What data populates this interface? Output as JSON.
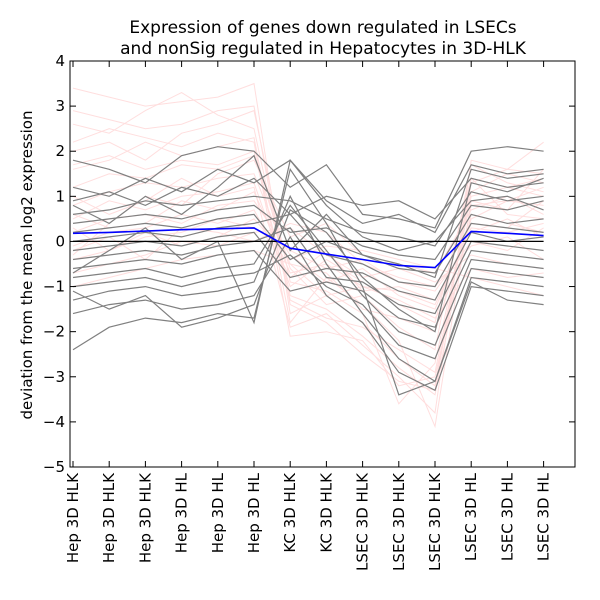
{
  "chart_data": {
    "type": "line",
    "title": "Expression of genes down regulated in LSECs\nand nonSig regulated in Hepatocytes in 3D-HLK",
    "xlabel": "",
    "ylabel": "deviation from the mean log2 expression",
    "ylim": [
      -5,
      4
    ],
    "yticks": [
      4,
      3,
      2,
      1,
      0,
      -1,
      -2,
      -3,
      -4,
      -5
    ],
    "grid": false,
    "categories": [
      "Hep 3D HLK",
      "Hep 3D HLK",
      "Hep 3D HLK",
      "Hep 3D HL",
      "Hep 3D HL",
      "Hep 3D HL",
      "KC 3D HLK",
      "KC 3D HLK",
      "LSEC 3D HLK",
      "LSEC 3D HLK",
      "LSEC 3D HLK",
      "LSEC 3D HL",
      "LSEC 3D HL",
      "LSEC 3D HL"
    ],
    "series": [
      {
        "role": "mean",
        "color": "#0000ff",
        "values": [
          0.18,
          0.2,
          0.23,
          0.26,
          0.28,
          0.3,
          -0.15,
          -0.28,
          -0.4,
          -0.53,
          -0.58,
          0.22,
          0.18,
          0.13
        ]
      },
      {
        "role": "zero-line",
        "color": "#000000",
        "values": [
          0,
          0,
          0,
          0,
          0,
          0,
          0,
          0,
          0,
          0,
          0,
          0,
          0,
          0
        ]
      }
    ],
    "background_series_colors": {
      "other_genes": "#ffdede",
      "down_regulated_genes": "#808080"
    },
    "gene_profiles_pink": [
      [
        3.4,
        3.2,
        3.0,
        3.1,
        3.2,
        3.5,
        -1.6,
        -1.2,
        -1.8,
        -2.6,
        -3.2,
        1.4,
        1.2,
        1.0
      ],
      [
        2.6,
        2.4,
        2.9,
        3.3,
        2.8,
        2.5,
        -1.2,
        -1.5,
        -2.1,
        -2.8,
        -3.4,
        0.8,
        0.9,
        1.2
      ],
      [
        2.0,
        2.2,
        1.8,
        2.4,
        2.6,
        2.9,
        -0.9,
        -1.1,
        -1.6,
        -3.6,
        -2.7,
        1.1,
        1.5,
        1.3
      ],
      [
        1.6,
        1.8,
        2.2,
        1.9,
        2.1,
        2.3,
        -1.8,
        -0.8,
        -1.4,
        -2.2,
        -4.1,
        0.9,
        0.7,
        1.6
      ],
      [
        1.2,
        1.5,
        1.4,
        1.7,
        1.6,
        1.9,
        -0.6,
        -1.4,
        -1.2,
        -1.9,
        -2.4,
        1.7,
        1.3,
        1.1
      ],
      [
        0.8,
        1.1,
        1.3,
        1.2,
        1.4,
        1.5,
        -0.5,
        -0.7,
        -1.5,
        -1.7,
        -2.0,
        0.5,
        0.9,
        0.8
      ],
      [
        0.5,
        0.9,
        0.7,
        1.0,
        1.1,
        1.3,
        -1.0,
        -0.4,
        -0.9,
        -1.4,
        -1.8,
        1.4,
        0.6,
        0.5
      ],
      [
        0.2,
        0.5,
        0.6,
        0.4,
        0.8,
        0.9,
        -0.3,
        -0.9,
        -0.6,
        -1.2,
        -1.5,
        0.4,
        0.3,
        0.9
      ],
      [
        -0.1,
        0.2,
        0.3,
        0.6,
        0.4,
        0.7,
        -0.8,
        -0.2,
        -1.1,
        -1.0,
        -1.3,
        0.2,
        0.5,
        0.1
      ],
      [
        -0.4,
        -0.2,
        0.1,
        0.2,
        0.5,
        0.3,
        -0.2,
        -0.6,
        -0.4,
        -0.9,
        -1.1,
        0.0,
        -0.2,
        0.3
      ],
      [
        -0.7,
        -0.5,
        -0.3,
        0.0,
        -0.1,
        0.2,
        0.3,
        -0.3,
        -0.8,
        -0.6,
        -0.9,
        -0.3,
        -0.5,
        -0.6
      ],
      [
        -1.0,
        -0.8,
        -0.6,
        -0.4,
        -0.3,
        -0.2,
        -0.5,
        -1.2,
        -1.0,
        -1.3,
        -1.7,
        -0.6,
        -0.8,
        -0.7
      ],
      [
        -0.3,
        0.4,
        1.0,
        0.8,
        1.5,
        1.8,
        0.1,
        0.4,
        -0.3,
        -0.5,
        -0.7,
        0.7,
        1.0,
        0.6
      ],
      [
        1.0,
        0.6,
        0.9,
        1.4,
        1.0,
        1.2,
        -1.9,
        -1.6,
        -2.3,
        -3.0,
        -3.8,
        1.8,
        1.6,
        2.2
      ],
      [
        0.3,
        -0.2,
        0.2,
        -0.1,
        0.1,
        0.5,
        -0.4,
        -0.1,
        -0.2,
        -0.4,
        -0.6,
        -0.8,
        -1.0,
        -1.2
      ],
      [
        1.7,
        1.9,
        1.6,
        1.8,
        1.7,
        2.0,
        -1.3,
        -1.7,
        -1.9,
        -2.4,
        -2.9,
        1.0,
        1.2,
        1.4
      ],
      [
        2.2,
        2.5,
        2.3,
        2.1,
        2.4,
        2.2,
        -2.1,
        -2.0,
        -2.2,
        -3.2,
        -3.0,
        0.6,
        0.4,
        0.2
      ],
      [
        0.6,
        0.3,
        0.4,
        0.9,
        0.7,
        1.1,
        -0.7,
        -0.5,
        -1.0,
        -1.1,
        -1.4,
        0.3,
        0.2,
        0.4
      ],
      [
        -0.2,
        0.1,
        -0.4,
        0.3,
        0.2,
        0.0,
        0.4,
        0.2,
        -0.5,
        -0.8,
        -1.0,
        -0.1,
        0.1,
        -0.4
      ],
      [
        2.9,
        2.7,
        2.5,
        2.6,
        2.9,
        3.0,
        -1.4,
        -1.8,
        -2.5,
        -3.1,
        -3.3,
        1.3,
        1.6,
        1.5
      ]
    ],
    "gene_profiles_gray": [
      [
        1.8,
        1.6,
        1.3,
        1.9,
        2.1,
        2.0,
        1.2,
        1.7,
        0.6,
        0.5,
        0.3,
        2.0,
        2.1,
        2.0
      ],
      [
        1.2,
        1.0,
        1.4,
        1.1,
        1.6,
        1.3,
        1.8,
        0.9,
        0.4,
        0.6,
        0.2,
        1.7,
        1.5,
        1.6
      ],
      [
        0.9,
        1.1,
        0.8,
        1.2,
        1.0,
        1.4,
        0.6,
        1.0,
        0.8,
        0.9,
        0.5,
        1.4,
        1.2,
        1.3
      ],
      [
        0.6,
        0.7,
        0.9,
        0.8,
        0.9,
        1.0,
        0.9,
        0.5,
        0.2,
        0.1,
        -0.1,
        1.1,
        0.9,
        1.0
      ],
      [
        0.4,
        0.5,
        0.6,
        0.5,
        0.7,
        0.8,
        0.2,
        0.3,
        -0.1,
        -0.3,
        -0.4,
        0.8,
        0.7,
        0.9
      ],
      [
        0.2,
        0.3,
        0.4,
        0.3,
        0.5,
        0.6,
        -0.4,
        0.0,
        -0.3,
        -0.6,
        -0.7,
        0.6,
        0.4,
        0.5
      ],
      [
        0.0,
        0.1,
        0.2,
        0.1,
        0.3,
        0.4,
        0.6,
        -0.3,
        -0.5,
        -0.9,
        -1.0,
        0.4,
        0.3,
        0.2
      ],
      [
        -0.2,
        -0.1,
        0.0,
        -0.1,
        0.1,
        0.2,
        -0.8,
        -0.6,
        -0.7,
        -1.1,
        -1.3,
        0.2,
        0.0,
        0.1
      ],
      [
        -0.4,
        -0.3,
        -0.2,
        -0.3,
        -0.1,
        0.0,
        0.3,
        -0.8,
        -0.9,
        -1.4,
        -1.6,
        0.0,
        -0.1,
        -0.2
      ],
      [
        -0.6,
        -0.5,
        -0.4,
        -0.5,
        -0.3,
        -0.2,
        -1.1,
        -0.9,
        -1.1,
        -1.7,
        -1.9,
        -0.2,
        -0.3,
        -0.4
      ],
      [
        -0.8,
        -0.7,
        -0.6,
        -0.8,
        -0.6,
        -0.5,
        0.8,
        -0.2,
        -1.2,
        -2.0,
        -2.3,
        -0.4,
        -0.5,
        -0.6
      ],
      [
        -1.0,
        -0.9,
        -0.8,
        -1.0,
        -0.8,
        -0.7,
        -0.3,
        -1.0,
        -1.4,
        -2.3,
        -2.6,
        -0.6,
        -0.7,
        -0.8
      ],
      [
        -1.3,
        -1.1,
        -1.0,
        -1.2,
        -1.1,
        -0.9,
        1.0,
        -0.5,
        -1.6,
        -2.6,
        -3.1,
        -0.8,
        -0.9,
        -1.0
      ],
      [
        -1.6,
        -1.4,
        -1.3,
        -1.5,
        -1.4,
        -1.2,
        0.1,
        -1.2,
        -1.8,
        -2.9,
        -3.3,
        -1.0,
        -1.1,
        -1.2
      ],
      [
        -2.4,
        -1.9,
        -1.7,
        -1.8,
        -1.6,
        -1.7,
        1.6,
        0.4,
        -1.0,
        -3.4,
        -3.1,
        -0.9,
        -1.3,
        -1.4
      ],
      [
        -1.1,
        -1.5,
        -1.2,
        -1.9,
        -1.7,
        -1.4,
        0.7,
        0.2,
        -0.8,
        -1.5,
        -2.0,
        1.3,
        1.1,
        1.4
      ],
      [
        0.8,
        0.4,
        1.0,
        0.6,
        1.2,
        1.9,
        -0.2,
        0.6,
        -0.3,
        -0.5,
        -0.8,
        1.6,
        1.4,
        1.5
      ],
      [
        -0.7,
        -0.2,
        0.3,
        -0.4,
        0.0,
        -1.8,
        1.8,
        0.8,
        0.1,
        -0.2,
        0.0,
        0.9,
        1.0,
        0.7
      ]
    ]
  },
  "labels": {
    "title_line1": "Expression of genes down regulated in LSECs",
    "title_line2": "and nonSig regulated in Hepatocytes in 3D-HLK",
    "ylabel": "deviation from the mean log2 expression"
  }
}
